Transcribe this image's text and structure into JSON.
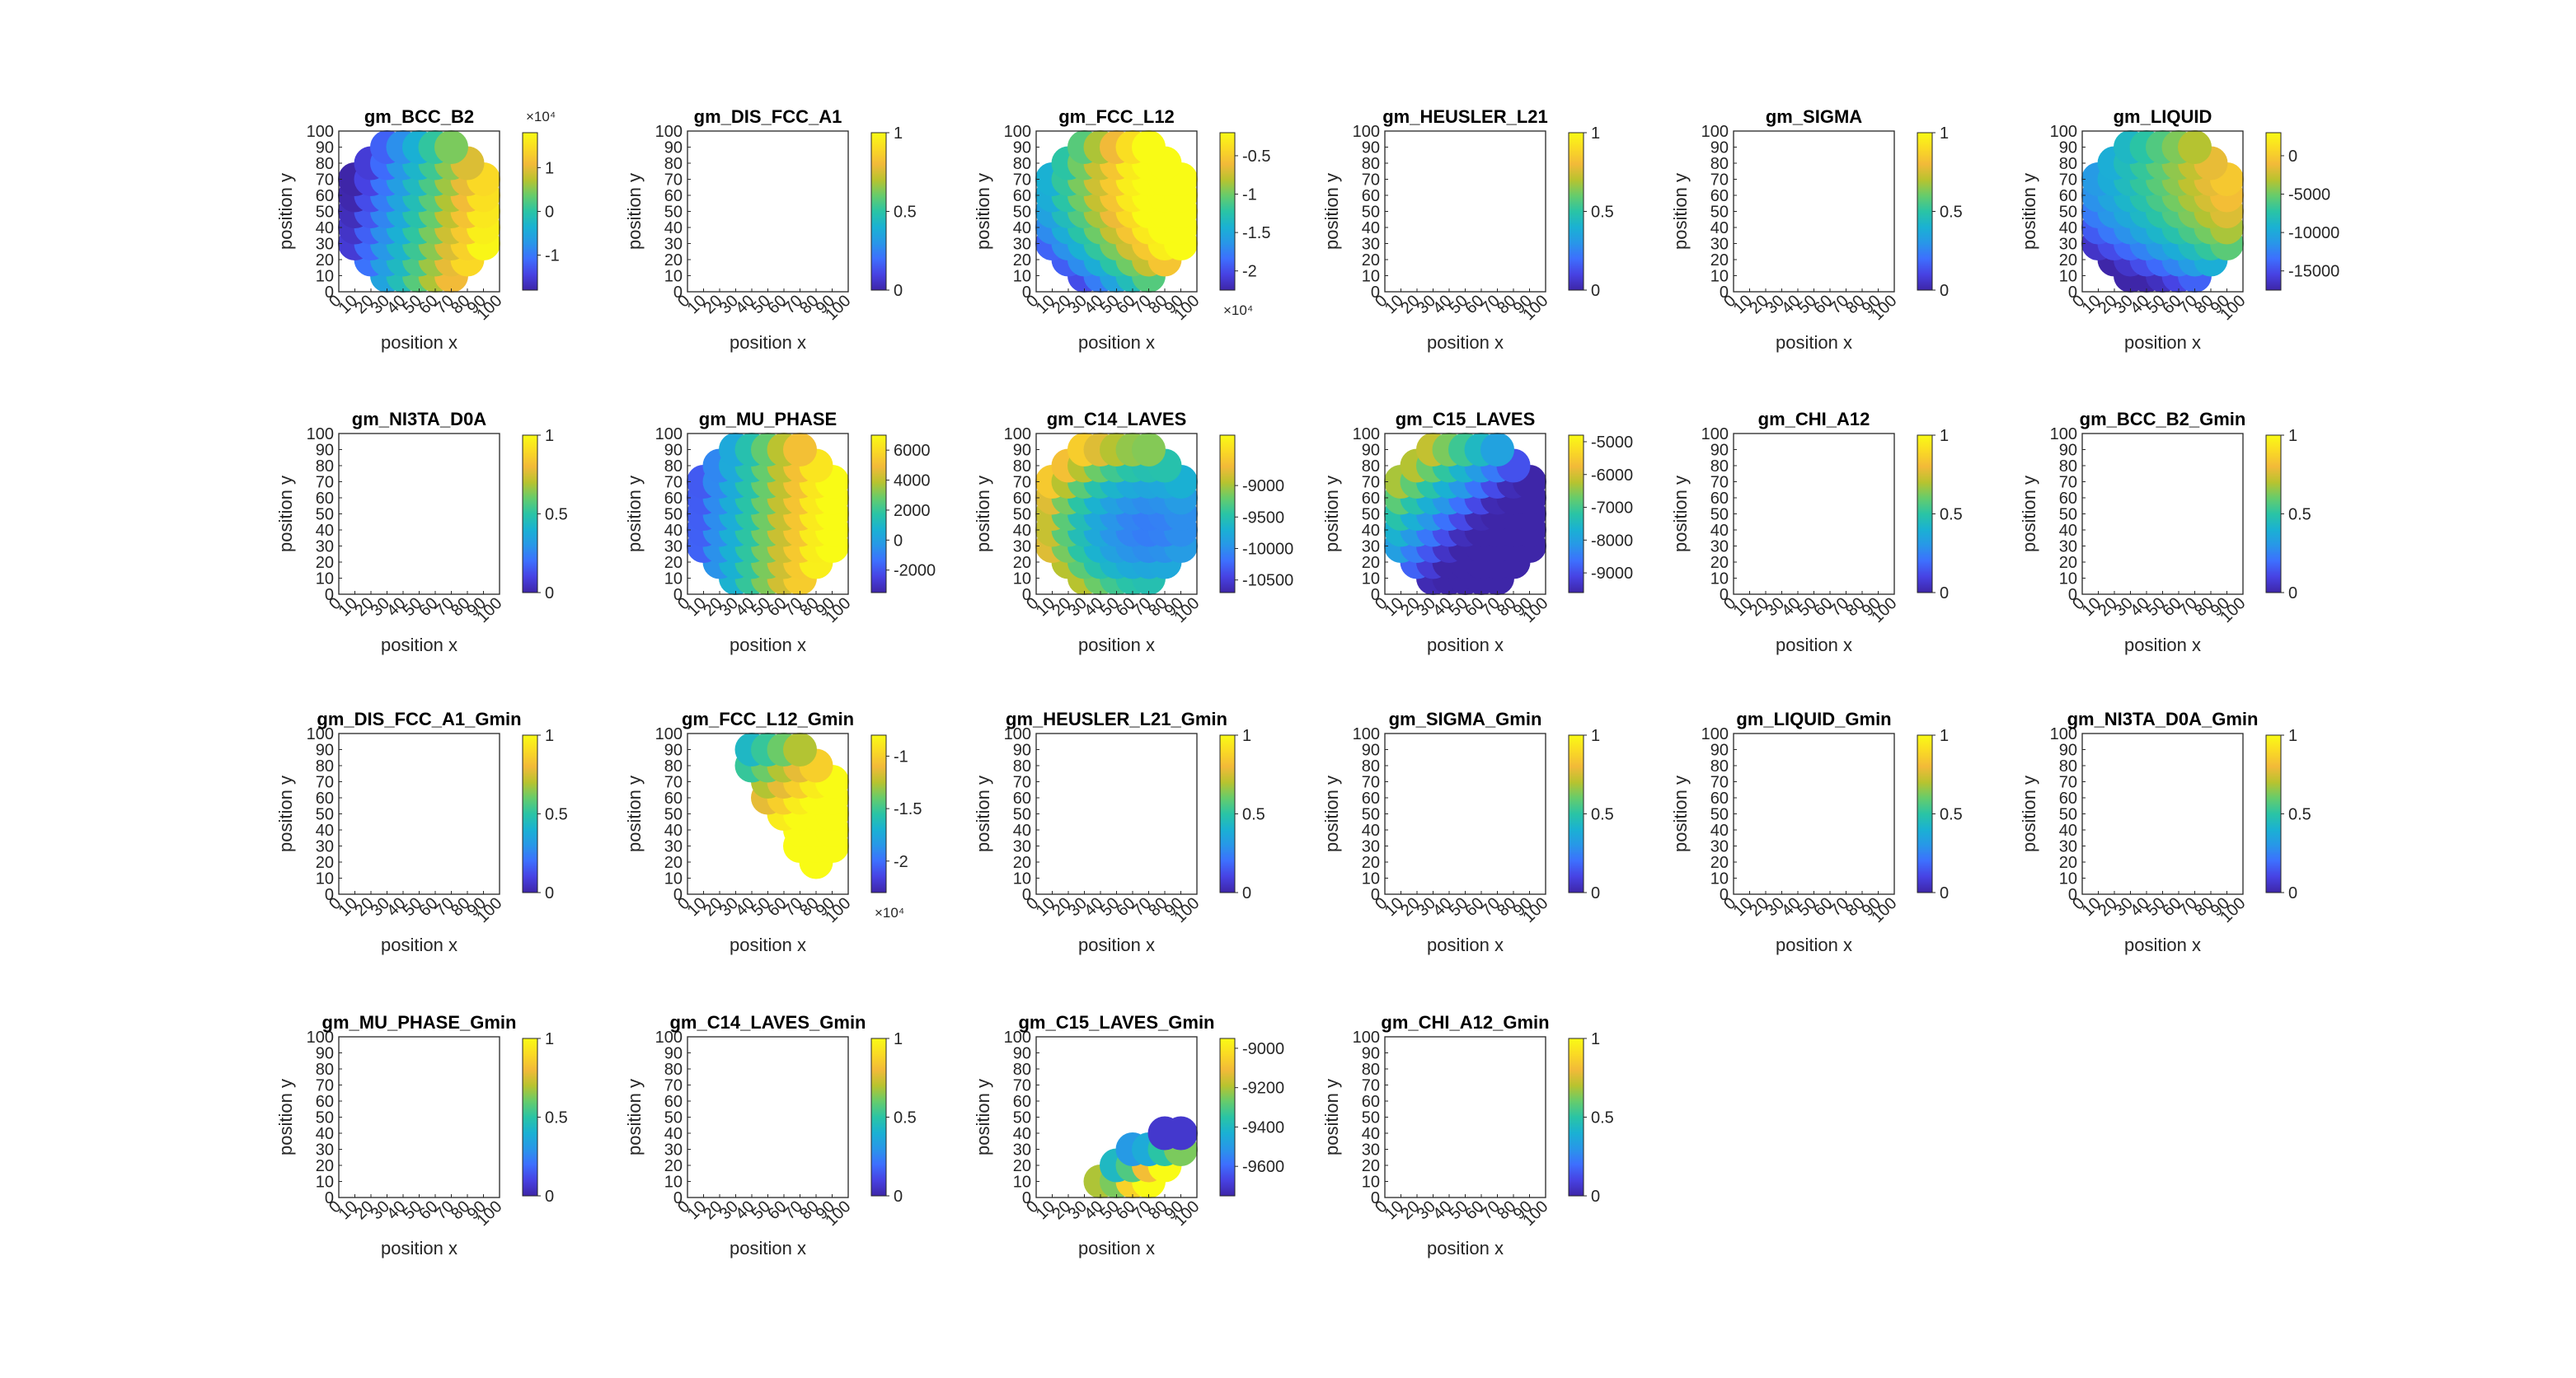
{
  "figure": {
    "common": {
      "xlabel": "position x",
      "ylabel": "position y",
      "xlim": [
        0,
        100
      ],
      "ylim": [
        0,
        100
      ],
      "ticks": [
        "0",
        "10",
        "20",
        "30",
        "40",
        "50",
        "60",
        "70",
        "80",
        "90",
        "100"
      ],
      "empty_colorbar_ticks": [
        "0",
        "0.5",
        "1"
      ]
    },
    "colormap": [
      "#3e26a8",
      "#4742e3",
      "#3d6ffe",
      "#2897e8",
      "#1ab1d3",
      "#2ac4a5",
      "#66cc6c",
      "#b8c32f",
      "#f2ba39",
      "#fada24",
      "#f9fb15"
    ]
  },
  "chart_data": [
    {
      "title": "gm_BCC_B2",
      "type": "scatter",
      "field": "bcc",
      "data_range": [
        -18000,
        18000
      ],
      "colorbar_ticks": [
        "-1",
        "0",
        "1"
      ],
      "exponent": "×10⁴"
    },
    {
      "title": "gm_DIS_FCC_A1",
      "type": "scatter",
      "field": "empty"
    },
    {
      "title": "gm_FCC_L12",
      "type": "scatter",
      "field": "fcc",
      "data_range": [
        -22500,
        -2000
      ],
      "colorbar_ticks": [
        "-2",
        "-1.5",
        "-1",
        "-0.5"
      ],
      "colorbar_values": [
        -20000,
        -15000,
        -10000,
        -5000
      ],
      "exponent": "×10⁴"
    },
    {
      "title": "gm_HEUSLER_L21",
      "type": "scatter",
      "field": "empty"
    },
    {
      "title": "gm_SIGMA",
      "type": "scatter",
      "field": "empty"
    },
    {
      "title": "gm_LIQUID",
      "type": "scatter",
      "field": "liquid",
      "data_range": [
        -17500,
        3000
      ],
      "colorbar_ticks": [
        "-15000",
        "-10000",
        "-5000",
        "0"
      ]
    },
    {
      "title": "gm_NI3TA_D0A",
      "type": "scatter",
      "field": "empty"
    },
    {
      "title": "gm_MU_PHASE",
      "type": "scatter",
      "field": "mu",
      "data_range": [
        -3500,
        7000
      ],
      "colorbar_ticks": [
        "-2000",
        "0",
        "2000",
        "4000",
        "6000"
      ]
    },
    {
      "title": "gm_C14_LAVES",
      "type": "scatter",
      "field": "c14",
      "data_range": [
        -10700,
        -8200
      ],
      "colorbar_ticks": [
        "-10500",
        "-10000",
        "-9500",
        "-9000"
      ]
    },
    {
      "title": "gm_C15_LAVES",
      "type": "scatter",
      "field": "c15",
      "data_range": [
        -9600,
        -4800
      ],
      "colorbar_ticks": [
        "-9000",
        "-8000",
        "-7000",
        "-6000",
        "-5000"
      ]
    },
    {
      "title": "gm_CHI_A12",
      "type": "scatter",
      "field": "empty"
    },
    {
      "title": "gm_BCC_B2_Gmin",
      "type": "scatter",
      "field": "empty"
    },
    {
      "title": "gm_DIS_FCC_A1_Gmin",
      "type": "scatter",
      "field": "empty"
    },
    {
      "title": "gm_FCC_L12_Gmin",
      "type": "scatter",
      "field": "fccmin",
      "data_range": [
        -23000,
        -8000
      ],
      "colorbar_ticks": [
        "-2",
        "-1.5",
        "-1"
      ],
      "colorbar_values": [
        -20000,
        -15000,
        -10000
      ],
      "exponent": "×10⁴"
    },
    {
      "title": "gm_HEUSLER_L21_Gmin",
      "type": "scatter",
      "field": "empty"
    },
    {
      "title": "gm_SIGMA_Gmin",
      "type": "scatter",
      "field": "empty"
    },
    {
      "title": "gm_LIQUID_Gmin",
      "type": "scatter",
      "field": "empty"
    },
    {
      "title": "gm_NI3TA_D0A_Gmin",
      "type": "scatter",
      "field": "empty"
    },
    {
      "title": "gm_MU_PHASE_Gmin",
      "type": "scatter",
      "field": "empty"
    },
    {
      "title": "gm_C14_LAVES_Gmin",
      "type": "scatter",
      "field": "empty"
    },
    {
      "title": "gm_C15_LAVES_Gmin",
      "type": "scatter",
      "field": "c15min",
      "data_range": [
        -9750,
        -8950
      ],
      "colorbar_ticks": [
        "-9600",
        "-9400",
        "-9200",
        "-9000"
      ],
      "points": [
        [
          40,
          10,
          -9200
        ],
        [
          50,
          10,
          -9250
        ],
        [
          60,
          10,
          -9050
        ],
        [
          70,
          10,
          -8950
        ],
        [
          50,
          20,
          -9400
        ],
        [
          60,
          20,
          -9300
        ],
        [
          70,
          20,
          -9100
        ],
        [
          80,
          20,
          -8950
        ],
        [
          60,
          30,
          -9500
        ],
        [
          70,
          30,
          -9450
        ],
        [
          80,
          30,
          -9350
        ],
        [
          90,
          30,
          -9250
        ],
        [
          80,
          40,
          -9700
        ],
        [
          90,
          40,
          -9700
        ]
      ]
    },
    {
      "title": "gm_CHI_A12_Gmin",
      "type": "scatter",
      "field": "empty"
    }
  ]
}
